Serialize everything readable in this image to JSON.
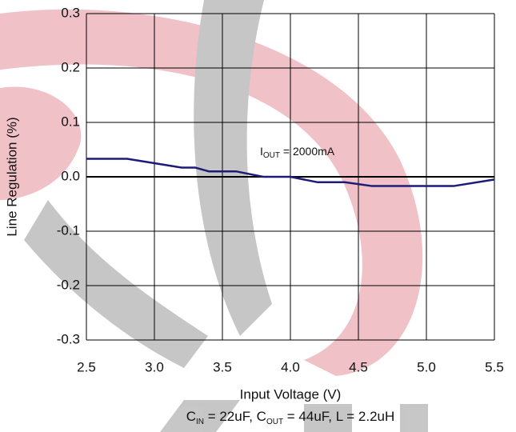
{
  "chart_data": {
    "type": "line",
    "xlabel": "Input Voltage (V)",
    "ylabel": "Line Regulation (%)",
    "annotation": {
      "text": "I",
      "sub": "OUT",
      "rest": " = 2000mA"
    },
    "caption": [
      {
        "text": "C"
      },
      {
        "sub": "IN"
      },
      {
        "text": " = 22uF, C"
      },
      {
        "sub": "OUT"
      },
      {
        "text": " = 44uF, L = 2.2uH"
      }
    ],
    "x": [
      2.5,
      2.8,
      3.0,
      3.2,
      3.3,
      3.4,
      3.6,
      3.8,
      4.0,
      4.2,
      4.4,
      4.6,
      5.0,
      5.2,
      5.5
    ],
    "series": [
      {
        "name": "I_OUT = 2000mA",
        "color": "#1c1c78",
        "values": [
          0.033,
          0.033,
          0.025,
          0.017,
          0.017,
          0.01,
          0.01,
          0.0,
          0.0,
          -0.01,
          -0.01,
          -0.017,
          -0.017,
          -0.017,
          -0.005
        ]
      }
    ],
    "xlim": [
      2.5,
      5.5
    ],
    "xticks": [
      2.5,
      {
        "value": 3,
        "label": "3.0"
      },
      3.5,
      {
        "value": 4,
        "label": "4.0"
      },
      4.5,
      {
        "value": 5,
        "label": "5.0"
      },
      5.5
    ],
    "ylim": [
      -0.3,
      0.3
    ],
    "yticks": [
      -0.3,
      -0.2,
      -0.1,
      {
        "value": 0,
        "label": "0.0"
      },
      0.1,
      0.2,
      0.3
    ],
    "grid": true
  }
}
